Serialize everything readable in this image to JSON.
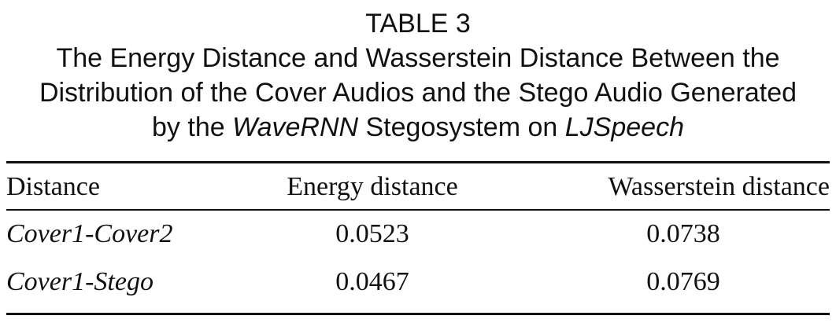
{
  "caption": {
    "table_number": "TABLE 3",
    "line1": "The Energy Distance and Wasserstein Distance Between the",
    "line2": "Distribution of the Cover Audios and the Stego Audio Generated",
    "line3_prefix": "by the ",
    "line3_model": "WaveRNN",
    "line3_middle": " Stegosystem on ",
    "line3_dataset": "LJSpeech"
  },
  "table": {
    "headers": [
      "Distance",
      "Energy distance",
      "Wasserstein distance"
    ],
    "rows": [
      [
        "Cover1-Cover2",
        "0.0523",
        "0.0738"
      ],
      [
        "Cover1-Stego",
        "0.0467",
        "0.0769"
      ]
    ]
  }
}
